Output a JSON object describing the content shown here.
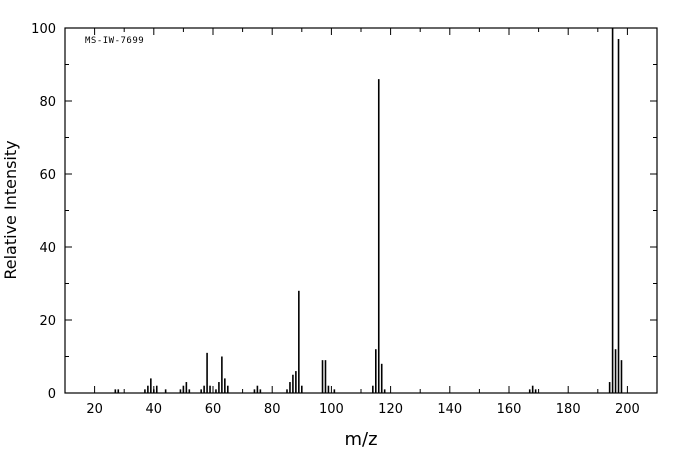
{
  "colors": {
    "foreground": "#000000",
    "background": "#ffffff"
  },
  "chart_data": {
    "type": "bar",
    "title": "MS-IW-7699",
    "xlabel": "m/z",
    "ylabel": "Relative Intensity",
    "xlim": [
      10,
      210
    ],
    "ylim": [
      0,
      100
    ],
    "x_ticks": [
      20,
      40,
      60,
      80,
      100,
      120,
      140,
      160,
      180,
      200
    ],
    "x_minor_ticks": [
      10,
      30,
      50,
      70,
      90,
      110,
      130,
      150,
      170,
      190,
      210
    ],
    "y_ticks": [
      0,
      20,
      40,
      60,
      80,
      100
    ],
    "y_minor_ticks": [
      10,
      30,
      50,
      70,
      90
    ],
    "grid": false,
    "legend": "none",
    "peaks": [
      [
        27,
        1
      ],
      [
        28,
        1
      ],
      [
        37,
        1
      ],
      [
        38,
        2
      ],
      [
        39,
        4
      ],
      [
        40,
        1
      ],
      [
        41,
        2
      ],
      [
        44,
        1
      ],
      [
        49,
        1
      ],
      [
        50,
        2
      ],
      [
        51,
        3
      ],
      [
        52,
        1
      ],
      [
        56,
        1
      ],
      [
        57,
        2
      ],
      [
        58,
        11
      ],
      [
        59,
        2
      ],
      [
        61,
        1
      ],
      [
        62,
        3
      ],
      [
        63,
        10
      ],
      [
        64,
        4
      ],
      [
        65,
        2
      ],
      [
        74,
        1
      ],
      [
        75,
        2
      ],
      [
        76,
        1
      ],
      [
        85,
        1
      ],
      [
        86,
        3
      ],
      [
        87,
        5
      ],
      [
        88,
        6
      ],
      [
        89,
        28
      ],
      [
        90,
        2
      ],
      [
        97,
        9
      ],
      [
        98,
        9
      ],
      [
        99,
        2
      ],
      [
        101,
        1
      ],
      [
        114,
        2
      ],
      [
        115,
        12
      ],
      [
        116,
        86
      ],
      [
        117,
        8
      ],
      [
        118,
        1
      ],
      [
        167,
        1
      ],
      [
        168,
        2
      ],
      [
        169,
        1
      ],
      [
        194,
        3
      ],
      [
        195,
        100
      ],
      [
        196,
        12
      ],
      [
        197,
        97
      ],
      [
        198,
        9
      ]
    ]
  }
}
